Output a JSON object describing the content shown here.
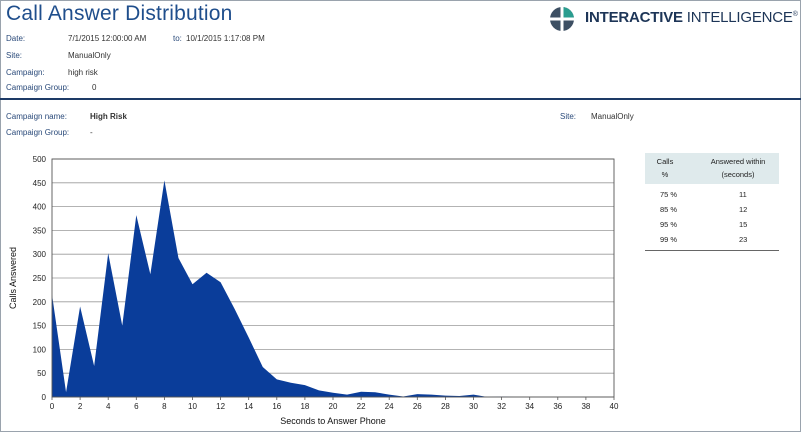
{
  "header": {
    "title": "Call Answer Distribution",
    "date_label": "Date:",
    "date_from": "7/1/2015 12:00:00 AM",
    "to_label": "to:",
    "date_to": "10/1/2015 1:17:08 PM",
    "site_label": "Site:",
    "site_value": "ManualOnly",
    "campaign_label": "Campaign:",
    "campaign_value": "high risk",
    "campaign_group_label": "Campaign Group:",
    "campaign_group_value": "0"
  },
  "logo": {
    "text_bold": "INTERACTIVE",
    "text_light": " INTELLIGENCE",
    "registered": "®"
  },
  "detail": {
    "campaign_name_label": "Campaign name:",
    "campaign_name_value": "High Risk",
    "site_label": "Site:",
    "site_value": "ManualOnly",
    "campaign_group_label": "Campaign Group:",
    "campaign_group_value": "-"
  },
  "answer_table": {
    "col1_line1": "Calls",
    "col1_line2": "%",
    "col2_line1": "Answered within",
    "col2_line2": "(seconds)",
    "rows": [
      {
        "pct": "75 %",
        "seconds": "11"
      },
      {
        "pct": "85 %",
        "seconds": "12"
      },
      {
        "pct": "95 %",
        "seconds": "15"
      },
      {
        "pct": "99 %",
        "seconds": "23"
      }
    ]
  },
  "colors": {
    "area_fill": "#0a3d9a",
    "title": "#1f4e8c",
    "header_rule": "#1d3a66",
    "table_header_bg": "#dfeaec"
  },
  "chart_data": {
    "type": "area",
    "xlabel": "Seconds to Answer Phone",
    "ylabel": "Calls Answered",
    "xlim": [
      0,
      40
    ],
    "ylim": [
      0,
      500
    ],
    "x_ticks": [
      0,
      2,
      4,
      6,
      8,
      10,
      12,
      14,
      16,
      18,
      20,
      22,
      24,
      26,
      28,
      30,
      32,
      34,
      36,
      38,
      40
    ],
    "y_ticks": [
      0,
      50,
      100,
      150,
      200,
      250,
      300,
      350,
      400,
      450,
      500
    ],
    "grid": "horizontal",
    "x": [
      0,
      1,
      2,
      3,
      4,
      5,
      6,
      7,
      8,
      9,
      10,
      11,
      12,
      13,
      14,
      15,
      16,
      17,
      18,
      19,
      20,
      21,
      22,
      23,
      24,
      25,
      26,
      27,
      28,
      29,
      30,
      31,
      32,
      33,
      34,
      35,
      36,
      37,
      38,
      39,
      40
    ],
    "values": [
      215,
      10,
      190,
      65,
      302,
      150,
      382,
      258,
      455,
      292,
      237,
      261,
      241,
      185,
      125,
      63,
      37,
      30,
      25,
      14,
      9,
      5,
      11,
      10,
      5,
      1,
      6,
      5,
      3,
      2,
      5,
      0,
      1,
      0,
      0,
      0,
      0,
      0,
      0,
      0,
      0
    ]
  }
}
